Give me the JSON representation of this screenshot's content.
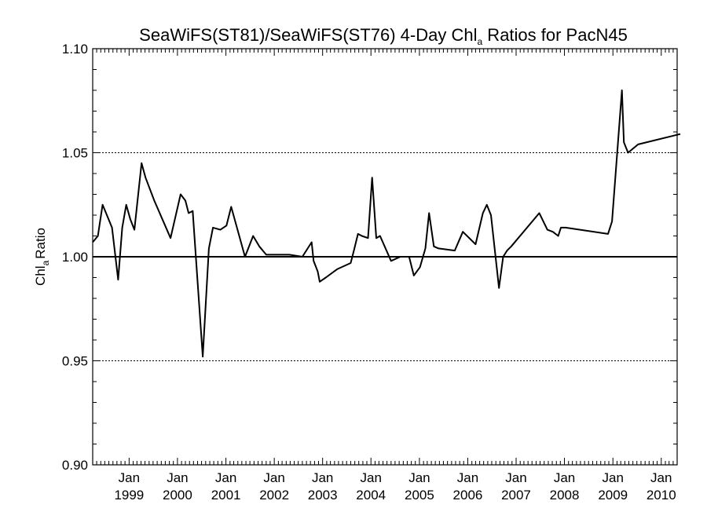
{
  "chart_data": {
    "type": "line",
    "title_parts": [
      "SeaWiFS(ST81)/SeaWiFS(ST76) 4-Day Chl",
      "a",
      " Ratios for PacN45"
    ],
    "ylabel_parts": [
      "Chl",
      "a",
      "Ratio"
    ],
    "xlabel": "",
    "ylim": [
      0.9,
      1.1
    ],
    "yticks": [
      0.9,
      0.95,
      1.0,
      1.05,
      1.1
    ],
    "ytick_labels": [
      "0.90",
      "0.95",
      "1.00",
      "1.05",
      "1.10"
    ],
    "y_grid_lines": [
      0.95,
      1.05
    ],
    "reference_line": 1.0,
    "xlim": [
      "1998-04",
      "2010-05"
    ],
    "xticks": [
      {
        "date": "1999-01",
        "line1": "Jan",
        "line2": "1999"
      },
      {
        "date": "2000-01",
        "line1": "Jan",
        "line2": "2000"
      },
      {
        "date": "2001-01",
        "line1": "Jan",
        "line2": "2001"
      },
      {
        "date": "2002-01",
        "line1": "Jan",
        "line2": "2002"
      },
      {
        "date": "2003-01",
        "line1": "Jan",
        "line2": "2003"
      },
      {
        "date": "2004-01",
        "line1": "Jan",
        "line2": "2004"
      },
      {
        "date": "2005-01",
        "line1": "Jan",
        "line2": "2005"
      },
      {
        "date": "2006-01",
        "line1": "Jan",
        "line2": "2006"
      },
      {
        "date": "2007-01",
        "line1": "Jan",
        "line2": "2007"
      },
      {
        "date": "2008-01",
        "line1": "Jan",
        "line2": "2008"
      },
      {
        "date": "2009-01",
        "line1": "Jan",
        "line2": "2009"
      },
      {
        "date": "2010-01",
        "line1": "Jan",
        "line2": "2010"
      }
    ],
    "series": [
      {
        "x": [
          "1998-04-01",
          "1998-05-10",
          "1998-06-15",
          "1998-08-25",
          "1998-10-10",
          "1998-11-10",
          "1998-12-10",
          "1999-01-10",
          "1999-02-10",
          "1999-04-05",
          "1999-05-05",
          "1999-07-10",
          "1999-11-10",
          "2000-01-25",
          "2000-03-01",
          "2000-03-25",
          "2000-04-25",
          "2000-07-10",
          "2000-08-25",
          "2000-09-25",
          "2000-11-20",
          "2001-01-05",
          "2001-02-10",
          "2001-05-25",
          "2001-07-25",
          "2001-09-10",
          "2001-11-01",
          "2002-01-10",
          "2002-04-25",
          "2002-08-01",
          "2002-10-10",
          "2002-10-25",
          "2002-11-25",
          "2002-12-10",
          "2003-01-25",
          "2003-04-20",
          "2003-08-01",
          "2003-08-25",
          "2003-09-25",
          "2003-10-25",
          "2003-12-10",
          "2004-01-10",
          "2004-02-10",
          "2004-03-10",
          "2004-06-01",
          "2004-08-10",
          "2004-10-15",
          "2004-11-20",
          "2005-01-05",
          "2005-02-15",
          "2005-03-15",
          "2005-04-20",
          "2005-05-25",
          "2005-09-25",
          "2005-11-25",
          "2006-03-01",
          "2006-04-25",
          "2006-05-25",
          "2006-06-25",
          "2006-08-25",
          "2006-09-25",
          "2006-10-25",
          "2006-11-25",
          "2007-06-25",
          "2007-08-25",
          "2007-10-05",
          "2007-11-15",
          "2007-12-05",
          "2008-01-10",
          "2008-11-25",
          "2008-12-25",
          "2009-03-10",
          "2009-03-25",
          "2009-04-25",
          "2009-07-10",
          "2010-05-25"
        ],
        "y": [
          1.007,
          1.01,
          1.025,
          1.014,
          0.989,
          1.014,
          1.025,
          1.018,
          1.013,
          1.045,
          1.038,
          1.027,
          1.009,
          1.03,
          1.027,
          1.021,
          1.022,
          0.952,
          1.004,
          1.014,
          1.013,
          1.015,
          1.024,
          1.0,
          1.01,
          1.005,
          1.001,
          1.001,
          1.001,
          1.0,
          1.007,
          0.998,
          0.993,
          0.988,
          0.99,
          0.994,
          0.997,
          1.003,
          1.011,
          1.01,
          1.009,
          1.038,
          1.009,
          1.01,
          0.998,
          1.0,
          1.0,
          0.991,
          0.995,
          1.004,
          1.021,
          1.005,
          1.004,
          1.003,
          1.012,
          1.006,
          1.021,
          1.025,
          1.02,
          0.985,
          1.0,
          1.003,
          1.005,
          1.021,
          1.013,
          1.012,
          1.01,
          1.014,
          1.014,
          1.011,
          1.017,
          1.08,
          1.055,
          1.05,
          1.054,
          1.059
        ]
      }
    ]
  }
}
